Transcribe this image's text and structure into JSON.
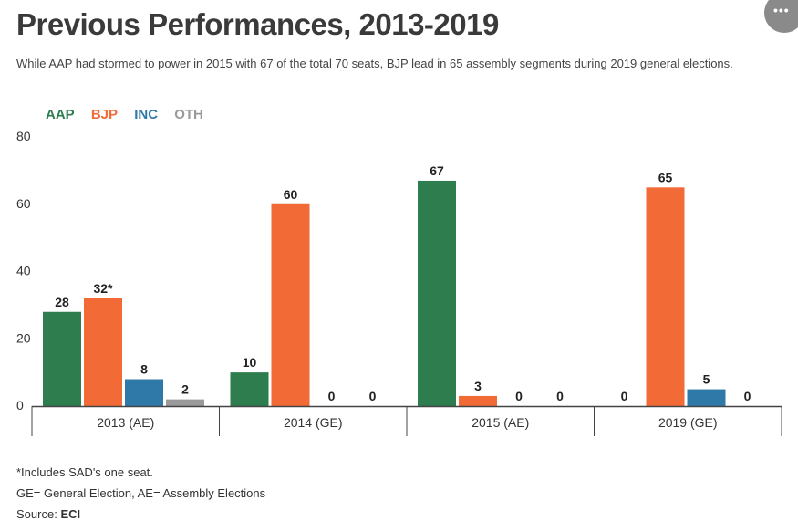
{
  "header": {
    "title": "Previous Performances, 2013-2019",
    "subtitle": "While AAP had stormed to power in 2015 with 67 of the total 70 seats, BJP lead in 65 assembly segments during 2019 general elections."
  },
  "menu": {
    "icon": "more-dots-icon",
    "label": "•••"
  },
  "colors": {
    "AAP": "#2e7d4f",
    "BJP": "#f26a35",
    "INC": "#2f79a8",
    "OTH": "#9a9a9a"
  },
  "chart_data": {
    "type": "bar",
    "categories": [
      "2013 (AE)",
      "2014 (GE)",
      "2015 (AE)",
      "2019 (GE)"
    ],
    "series": [
      {
        "name": "AAP",
        "values": [
          28,
          10,
          67,
          0
        ],
        "labels": [
          "28",
          "10",
          "67",
          "0"
        ]
      },
      {
        "name": "BJP",
        "values": [
          32,
          60,
          3,
          65
        ],
        "labels": [
          "32*",
          "60",
          "3",
          "65"
        ]
      },
      {
        "name": "INC",
        "values": [
          8,
          0,
          0,
          5
        ],
        "labels": [
          "8",
          "0",
          "0",
          "5"
        ]
      },
      {
        "name": "OTH",
        "values": [
          2,
          0,
          0,
          0
        ],
        "labels": [
          "2",
          "0",
          "0",
          "0"
        ]
      }
    ],
    "yticks": [
      0,
      20,
      40,
      60,
      80
    ],
    "ylim": [
      0,
      80
    ],
    "grid": false,
    "legend_position": "top-left"
  },
  "notes": {
    "line1": "*Includes SAD's one seat.",
    "line2": "GE= General Election, AE= Assembly Elections",
    "source_label": "Source:",
    "source_value": "ECI"
  }
}
